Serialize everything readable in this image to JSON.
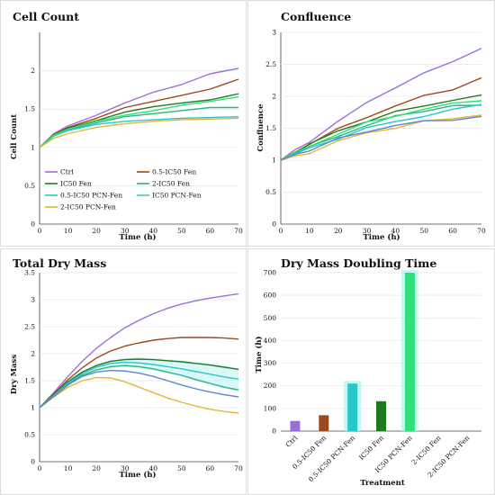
{
  "figure": {
    "colors": {
      "Ctrl": "#9b6fd6",
      "0.5-IC50 Fen": "#9a4a1c",
      "IC50 Fen": "#1f7a1f",
      "2-IC50 Fen": "#2bb67f",
      "0.5-IC50 PCN-Fen": "#27c7c7",
      "IC50 PCN-Fen": "#2de07a",
      "2-IC50 PCN-Fen": "#e8b43a",
      "extra": "#5b86d6",
      "shade": "#bdf2f2"
    }
  },
  "chart_data": [
    {
      "id": "cell-count",
      "type": "line",
      "title": "Cell Count",
      "xlabel": "Time (h)",
      "ylabel": "Cell Count",
      "xlim": [
        0,
        70
      ],
      "ylim": [
        0,
        2.5
      ],
      "xticks": [
        "0",
        "10",
        "20",
        "30",
        "40",
        "50",
        "60",
        "70"
      ],
      "yticks": [
        "0",
        "0.5",
        "1",
        "1.5",
        "2"
      ],
      "legend": [
        {
          "label": "Ctrl",
          "color": "#9b6fd6"
        },
        {
          "label": "0.5-IC50 Fen",
          "color": "#9a4a1c"
        },
        {
          "label": "IC50 Fen",
          "color": "#1f7a1f"
        },
        {
          "label": "2-IC50 Fen",
          "color": "#2bb67f"
        },
        {
          "label": "0.5-IC50 PCN-Fen",
          "color": "#27c7c7"
        },
        {
          "label": "IC50 PCN-Fen",
          "color": "#2de07a"
        },
        {
          "label": "2-IC50 PCN-Fen",
          "color": "#e8b43a"
        }
      ],
      "legend_position": "lower-left",
      "x": [
        0,
        5,
        10,
        20,
        30,
        40,
        50,
        60,
        70
      ],
      "series": [
        {
          "name": "Ctrl",
          "color": "#9b6fd6",
          "values": [
            1.0,
            1.18,
            1.28,
            1.42,
            1.58,
            1.72,
            1.82,
            1.96,
            2.03
          ]
        },
        {
          "name": "0.5-IC50 Fen",
          "color": "#9a4a1c",
          "values": [
            1.0,
            1.17,
            1.26,
            1.38,
            1.52,
            1.6,
            1.68,
            1.76,
            1.89
          ]
        },
        {
          "name": "IC50 Fen",
          "color": "#1f7a1f",
          "values": [
            1.0,
            1.16,
            1.25,
            1.35,
            1.46,
            1.53,
            1.58,
            1.62,
            1.7
          ]
        },
        {
          "name": "2-IC50 Fen",
          "color": "#2bb67f",
          "values": [
            1.0,
            1.15,
            1.23,
            1.32,
            1.4,
            1.44,
            1.48,
            1.52,
            1.52
          ]
        },
        {
          "name": "0.5-IC50 PCN-Fen",
          "color": "#27c7c7",
          "values": [
            1.0,
            1.15,
            1.22,
            1.3,
            1.34,
            1.36,
            1.38,
            1.39,
            1.4
          ]
        },
        {
          "name": "IC50 PCN-Fen",
          "color": "#2de07a",
          "values": [
            1.0,
            1.16,
            1.24,
            1.34,
            1.42,
            1.48,
            1.55,
            1.6,
            1.66
          ]
        },
        {
          "name": "2-IC50 PCN-Fen",
          "color": "#e8b43a",
          "values": [
            1.0,
            1.12,
            1.18,
            1.26,
            1.31,
            1.34,
            1.36,
            1.37,
            1.38
          ]
        }
      ]
    },
    {
      "id": "confluence",
      "type": "line",
      "title": "Confluence",
      "xlabel": "Time (h)",
      "ylabel": "Confluence",
      "xlim": [
        0,
        70
      ],
      "ylim": [
        0,
        3
      ],
      "xticks": [
        "0",
        "10",
        "20",
        "30",
        "40",
        "50",
        "60",
        "70"
      ],
      "yticks": [
        "0",
        "0.5",
        "1",
        "1.5",
        "2",
        "2.5",
        "3"
      ],
      "x": [
        0,
        5,
        10,
        20,
        30,
        40,
        50,
        60,
        70
      ],
      "series": [
        {
          "name": "Ctrl",
          "color": "#9b6fd6",
          "values": [
            1.0,
            1.15,
            1.3,
            1.6,
            1.9,
            2.15,
            2.35,
            2.55,
            2.76
          ]
        },
        {
          "name": "0.5-IC50 Fen",
          "color": "#9a4a1c",
          "values": [
            1.0,
            1.13,
            1.26,
            1.48,
            1.68,
            1.85,
            2.0,
            2.12,
            2.28
          ]
        },
        {
          "name": "IC50 Fen",
          "color": "#1f7a1f",
          "values": [
            1.0,
            1.12,
            1.25,
            1.45,
            1.62,
            1.75,
            1.85,
            1.95,
            2.0
          ]
        },
        {
          "name": "2-IC50 Fen",
          "color": "#2bb67f",
          "values": [
            1.0,
            1.1,
            1.2,
            1.38,
            1.55,
            1.68,
            1.78,
            1.85,
            1.85
          ]
        },
        {
          "name": "0.5-IC50 PCN-Fen",
          "color": "#27c7c7",
          "values": [
            1.0,
            1.1,
            1.18,
            1.35,
            1.5,
            1.6,
            1.7,
            1.78,
            1.88
          ]
        },
        {
          "name": "IC50 PCN-Fen",
          "color": "#2de07a",
          "values": [
            1.0,
            1.11,
            1.22,
            1.42,
            1.58,
            1.7,
            1.8,
            1.88,
            1.95
          ]
        },
        {
          "name": "2-IC50 PCN-Fen",
          "color": "#e8b43a",
          "values": [
            1.0,
            1.05,
            1.12,
            1.3,
            1.42,
            1.52,
            1.6,
            1.65,
            1.72
          ]
        },
        {
          "name": "",
          "color": "#5b86d6",
          "values": [
            1.0,
            1.09,
            1.16,
            1.33,
            1.45,
            1.55,
            1.6,
            1.64,
            1.68
          ]
        }
      ]
    },
    {
      "id": "total-dry-mass",
      "type": "line",
      "title": "Total Dry Mass",
      "xlabel": "Time (h)",
      "ylabel": "Dry Mass",
      "xlim": [
        0,
        70
      ],
      "ylim": [
        0,
        3.5
      ],
      "xticks": [
        "0",
        "10",
        "20",
        "30",
        "40",
        "50",
        "60",
        "70"
      ],
      "yticks": [
        "0",
        "0.5",
        "1",
        "1.5",
        "2",
        "2.5",
        "3",
        "3.5"
      ],
      "x": [
        0,
        5,
        10,
        15,
        20,
        25,
        30,
        35,
        40,
        45,
        50,
        55,
        60,
        65,
        70
      ],
      "series": [
        {
          "name": "Ctrl",
          "color": "#9b6fd6",
          "values": [
            1.0,
            1.28,
            1.58,
            1.86,
            2.1,
            2.3,
            2.48,
            2.62,
            2.74,
            2.84,
            2.92,
            2.98,
            3.03,
            3.07,
            3.11
          ]
        },
        {
          "name": "0.5-IC50 Fen",
          "color": "#9a4a1c",
          "values": [
            1.0,
            1.26,
            1.52,
            1.74,
            1.92,
            2.05,
            2.14,
            2.2,
            2.25,
            2.28,
            2.3,
            2.3,
            2.3,
            2.29,
            2.27
          ]
        },
        {
          "name": "IC50 Fen",
          "color": "#1f7a1f",
          "values": [
            1.0,
            1.24,
            1.48,
            1.66,
            1.78,
            1.86,
            1.89,
            1.9,
            1.89,
            1.87,
            1.85,
            1.82,
            1.79,
            1.75,
            1.71
          ]
        },
        {
          "name": "2-IC50 Fen",
          "color": "#2bb67f",
          "values": [
            1.0,
            1.22,
            1.44,
            1.6,
            1.7,
            1.76,
            1.78,
            1.76,
            1.72,
            1.66,
            1.6,
            1.52,
            1.45,
            1.38,
            1.33
          ]
        },
        {
          "name": "0.5-IC50 PCN-Fen",
          "color": "#27c7c7",
          "values": [
            1.0,
            1.23,
            1.46,
            1.63,
            1.75,
            1.82,
            1.84,
            1.83,
            1.8,
            1.76,
            1.72,
            1.67,
            1.62,
            1.57,
            1.53
          ]
        },
        {
          "name": "2-IC50 PCN-Fen",
          "color": "#e8b43a",
          "values": [
            1.0,
            1.2,
            1.38,
            1.5,
            1.56,
            1.55,
            1.48,
            1.38,
            1.28,
            1.18,
            1.1,
            1.03,
            0.97,
            0.93,
            0.9
          ]
        },
        {
          "name": "",
          "color": "#5b86d6",
          "values": [
            1.0,
            1.21,
            1.42,
            1.58,
            1.66,
            1.69,
            1.68,
            1.64,
            1.58,
            1.5,
            1.42,
            1.35,
            1.29,
            1.24,
            1.2
          ]
        }
      ]
    },
    {
      "id": "dry-mass-doubling-time",
      "type": "bar",
      "title": "Dry Mass Doubling Time",
      "xlabel": "Treatment",
      "ylabel": "Time (h)",
      "ylim": [
        0,
        700
      ],
      "yticks": [
        "0",
        "100",
        "200",
        "300",
        "400",
        "500",
        "600",
        "700"
      ],
      "categories": [
        "Ctrl",
        "0.5-IC50 Fen",
        "0.5-IC50 PCN-Fen",
        "IC50 Fen",
        "IC50 PCN-Fen",
        "2-IC50 Fen",
        "2-IC50 PCN-Fen"
      ],
      "values": [
        45,
        70,
        210,
        132,
        700,
        0,
        0
      ],
      "colors": [
        "#9b6fd6",
        "#9a4a1c",
        "#27c7c7",
        "#1f7a1f",
        "#2de07a",
        "#2bb67f",
        "#e8b43a"
      ]
    }
  ]
}
